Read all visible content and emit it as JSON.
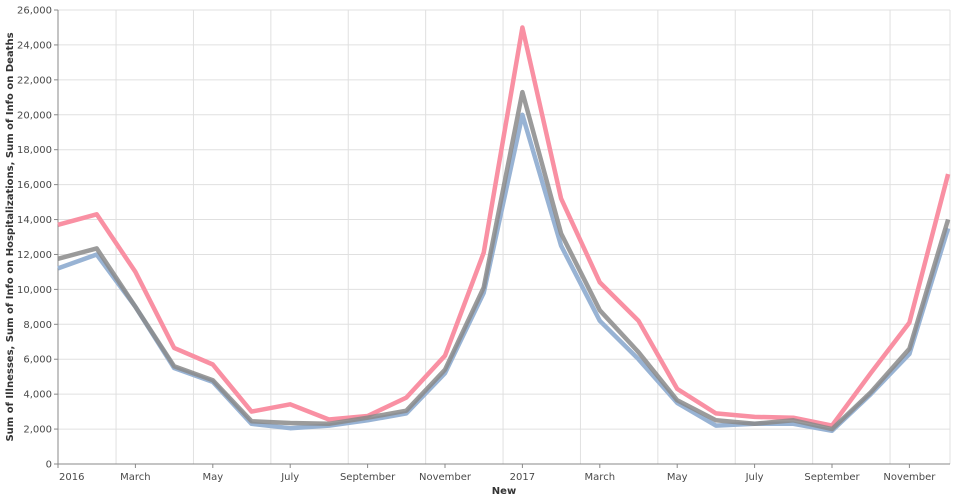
{
  "chart_data": {
    "type": "line",
    "title": "",
    "xlabel": "New",
    "ylabel": "Sum of Illnesses, Sum of Info on Hospitalizations, Sum of Info on Deaths",
    "ylim": [
      0,
      26000
    ],
    "yticks": [
      0,
      2000,
      4000,
      6000,
      8000,
      10000,
      12000,
      14000,
      16000,
      18000,
      20000,
      22000,
      24000,
      26000
    ],
    "ytick_labels": [
      "0",
      "2,000",
      "4,000",
      "6,000",
      "8,000",
      "10,000",
      "12,000",
      "14,000",
      "16,000",
      "18,000",
      "20,000",
      "22,000",
      "24,000",
      "26,000"
    ],
    "x": [
      "2016-01",
      "2016-02",
      "2016-03",
      "2016-04",
      "2016-05",
      "2016-06",
      "2016-07",
      "2016-08",
      "2016-09",
      "2016-10",
      "2016-11",
      "2016-12",
      "2017-01",
      "2017-02",
      "2017-03",
      "2017-04",
      "2017-05",
      "2017-06",
      "2017-07",
      "2017-08",
      "2017-09",
      "2017-10",
      "2017-11",
      "2017-12"
    ],
    "xtick_labels": [
      {
        "x": "2016-01",
        "label": "2016"
      },
      {
        "x": "2016-03",
        "label": "March"
      },
      {
        "x": "2016-05",
        "label": "May"
      },
      {
        "x": "2016-07",
        "label": "July"
      },
      {
        "x": "2016-09",
        "label": "September"
      },
      {
        "x": "2016-11",
        "label": "November"
      },
      {
        "x": "2017-01",
        "label": "2017"
      },
      {
        "x": "2017-03",
        "label": "March"
      },
      {
        "x": "2017-05",
        "label": "May"
      },
      {
        "x": "2017-07",
        "label": "July"
      },
      {
        "x": "2017-09",
        "label": "September"
      },
      {
        "x": "2017-11",
        "label": "November"
      }
    ],
    "grid": true,
    "series": [
      {
        "color": "#98b3d4",
        "values": [
          11200,
          12000,
          9000,
          5500,
          4700,
          2300,
          2050,
          2200,
          2500,
          2900,
          5200,
          9800,
          20000,
          12500,
          8200,
          6000,
          3500,
          2200,
          2300,
          2300,
          1900,
          4000,
          6300,
          13500
        ]
      },
      {
        "color": "#f990a3",
        "values": [
          13700,
          14300,
          11000,
          6650,
          5700,
          3000,
          3420,
          2550,
          2750,
          3800,
          6200,
          12100,
          25000,
          15200,
          10400,
          8200,
          4300,
          2900,
          2700,
          2650,
          2200,
          5200,
          8100,
          16600
        ]
      },
      {
        "color": "#8a8a8a",
        "values": [
          11750,
          12350,
          9000,
          5600,
          4800,
          2450,
          2350,
          2300,
          2650,
          3050,
          5400,
          10100,
          21300,
          13200,
          8800,
          6400,
          3650,
          2500,
          2300,
          2500,
          2000,
          4100,
          6600,
          14000
        ]
      }
    ]
  }
}
